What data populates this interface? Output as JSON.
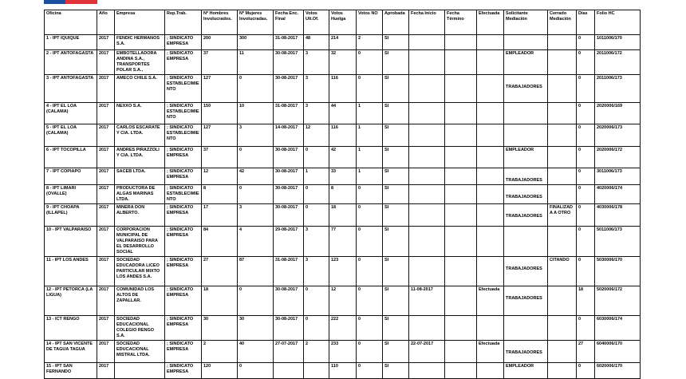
{
  "logo": {
    "text": "DIRECCIÓN DEL TRABAJO"
  },
  "headers": [
    "Oficina",
    "Año",
    "Empresa",
    "Rep.Trab.",
    "Nº Hombres Involucrados.",
    "Nº Mujeres Involucradas.",
    "Fecha Enc. Final",
    "Votos Ult.Of.",
    "Votos Huelga",
    "Votos NO",
    "Aprobada",
    "Fecha Inicio",
    "Fecha Término",
    "Efectuada",
    "Solicitante Mediación",
    "Cerrado Mediación",
    "Días",
    "Folio HC"
  ],
  "rows": [
    [
      "1 - IPT IQUIQUE",
      "2017",
      "FENDIC HERMANOS S.A.",
      "; SINDICATO EMPRESA",
      "200",
      "300",
      "31-08-2017",
      "48",
      "214",
      "2",
      "SI",
      "",
      "",
      "",
      "",
      "",
      "0",
      "1011006/170"
    ],
    [
      "2 - IPT ANTOFAGASTA",
      "2017",
      "EMBOTELLADORA ANDINA S.A., TRANSPORTES POLAR S.A.,",
      "; SINDICATO EMPRESA",
      "37",
      "11",
      "30-08-2017",
      "3",
      "32",
      "0",
      "SI",
      "",
      "",
      "",
      "EMPLEADOR",
      "",
      "0",
      "2011006/172"
    ],
    [
      "3 - IPT ANTOFAGASTA",
      "2017",
      "AMECO CHILE S.A.",
      "; SINDICATO ESTABLECIMIENTO",
      "127",
      "0",
      "30-08-2017",
      "3",
      "116",
      "0",
      "SI",
      "",
      "",
      "",
      "TRABAJADORES",
      "",
      "0",
      "2011006/173"
    ],
    [
      "4 - IPT EL LOA (CALAMA)",
      "2017",
      "NEXXO S.A.",
      "; SINDICATO ESTABLECIMIENTO",
      "150",
      "10",
      "31-08-2017",
      "3",
      "44",
      "1",
      "SI",
      "",
      "",
      "",
      "",
      "",
      "0",
      "2020006/169"
    ],
    [
      "5 - IPT EL LOA (CALAMA)",
      "2017",
      "CARLOS ESCARATE Y CIA. LTDA.",
      "; SINDICATO ESTABLECIMIENTO",
      "127",
      "3",
      "14-08-2017",
      "12",
      "116",
      "1",
      "SI",
      "",
      "",
      "",
      "",
      "",
      "0",
      "2020006/173"
    ],
    [
      "6 - IPT TOCOPILLA",
      "2017",
      "ANDRES PIRAZZOLI Y CIA. LTDA.",
      "; SINDICATO EMPRESA",
      "37",
      "0",
      "30-08-2017",
      "0",
      "42",
      "1",
      "SI",
      "",
      "",
      "",
      "EMPLEADOR",
      "",
      "0",
      "2020006/172"
    ],
    [
      "7 - IPT COPIAPO",
      "2017",
      "SACEB LTDA.",
      "; SINDICATO EMPRESA",
      "12",
      "42",
      "30-08-2017",
      "1",
      "33",
      "1",
      "SI",
      "",
      "",
      "",
      "TRABAJADORES",
      "",
      "0",
      "3011006/173"
    ],
    [
      "8 - IPT LIMARI (OVALLE)",
      "2017",
      "PRODUCTORA DE ALGAS MARINAS LTDA.",
      "; SINDICATO ESTABLECIMIENTO",
      "8",
      "0",
      "30-08-2017",
      "0",
      "8",
      "0",
      "SI",
      "",
      "",
      "",
      "TRABAJADORES",
      "",
      "0",
      "4020006/174"
    ],
    [
      "9 - IPT CHOAPA (ILLAPEL)",
      "2017",
      "MINERA DON ALBERTO.",
      "; SINDICATO EMPRESA",
      "17",
      "3",
      "30-08-2017",
      "0",
      "18",
      "0",
      "SI",
      "",
      "",
      "",
      "TRABAJADORES",
      "FINALIZADA A OTRO",
      "0",
      "4030006/178"
    ],
    [
      "10 - IPT VALPARAISO",
      "2017",
      "CORPORACION MUNICIPAL DE VALPARAISO PARA EL DESARROLLO SOCIAL",
      "; SINDICATO EMPRESA",
      "84",
      "4",
      "29-08-2017",
      "3",
      "77",
      "0",
      "SI",
      "",
      "",
      "",
      "",
      "",
      "0",
      "5011006/173"
    ],
    [
      "11 - IPT LOS ANDES",
      "2017",
      "SOCIEDAD EDUCADORA LICEO PARTICULAR MIXTO LOS ANDES S.A.",
      "; SINDICATO EMPRESA",
      "27",
      "87",
      "31-08-2017",
      "3",
      "123",
      "0",
      "SI",
      "",
      "",
      "",
      "TRABAJADORES",
      "CITANDO",
      "0",
      "5030006/170"
    ],
    [
      "12 - IPT PETORCA (LA LIGUA)",
      "2017",
      "COMUNIDAD LOS ALTOS DE ZAPALLAR.",
      "; SINDICATO EMPRESA",
      "18",
      "0",
      "30-08-2017",
      "0",
      "12",
      "0",
      "SI",
      "11-08-2017",
      "",
      "Efectuada",
      "TRABAJADORES",
      "",
      "18",
      "5020006/172"
    ],
    [
      "13 - ICT RENGO",
      "2017",
      "SOCIEDAD EDUCACIONAL COLEGIO RENGO S.A.",
      "; SINDICATO EMPRESA",
      "30",
      "30",
      "30-08-2017",
      "0",
      "222",
      "0",
      "SI",
      "",
      "",
      "",
      "",
      "",
      "0",
      "6030006/174"
    ],
    [
      "14 - IPT SAN VICENTE DE TAGUA TAGUA",
      "2017",
      "SOCIEDAD EDUCACIONAL MISTRAL LTDA.",
      "; SINDICATO EMPRESA",
      "2",
      "40",
      "27-07-2017",
      "2",
      "233",
      "0",
      "SI",
      "22-07-2017",
      "",
      "Efectuada",
      "TRABAJADORES",
      "",
      "27",
      "6040006/170"
    ],
    [
      "15 - IPT SAN FERNANDO",
      "2017",
      "",
      "; SINDICATO EMPRESA",
      "120",
      "0",
      "",
      "",
      "110",
      "0",
      "SI",
      "",
      "",
      "",
      "EMPLEADOR",
      "",
      "0",
      "6020006/170"
    ]
  ]
}
